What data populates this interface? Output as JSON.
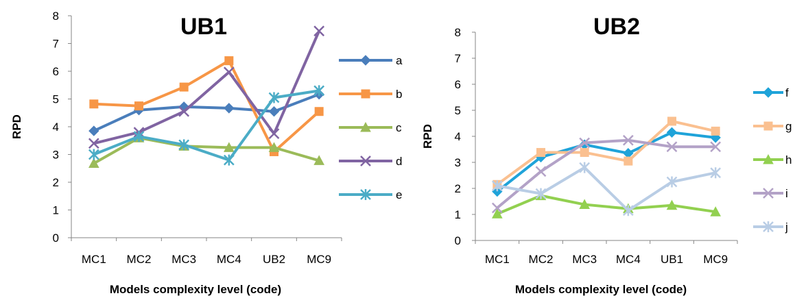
{
  "chart_data": [
    {
      "type": "line",
      "title": "UB1",
      "xlabel": "Models complexity level (code)",
      "ylabel": "RPD",
      "ylim": [
        0,
        8
      ],
      "yticks": [
        0,
        1,
        2,
        3,
        4,
        5,
        6,
        7,
        8
      ],
      "categories": [
        "MC1",
        "MC2",
        "MC3",
        "MC4",
        "UB2",
        "MC9"
      ],
      "legend_position": "right",
      "grid": false,
      "series": [
        {
          "name": "a",
          "color": "#4a7ebb",
          "marker": "diamond",
          "values": [
            3.85,
            4.6,
            4.72,
            4.67,
            4.55,
            5.17
          ]
        },
        {
          "name": "b",
          "color": "#f79646",
          "marker": "square",
          "values": [
            4.82,
            4.75,
            5.43,
            6.38,
            3.1,
            4.55
          ]
        },
        {
          "name": "c",
          "color": "#9bbb59",
          "marker": "triangle",
          "values": [
            2.68,
            3.6,
            3.3,
            3.25,
            3.25,
            2.78
          ]
        },
        {
          "name": "d",
          "color": "#8064a2",
          "marker": "x",
          "values": [
            3.4,
            3.8,
            4.55,
            5.97,
            3.75,
            7.45
          ]
        },
        {
          "name": "e",
          "color": "#4bacc6",
          "marker": "star",
          "values": [
            3.0,
            3.65,
            3.35,
            2.8,
            5.05,
            5.3
          ]
        }
      ]
    },
    {
      "type": "line",
      "title": "UB2",
      "xlabel": "Models complexity level (code)",
      "ylabel": "RPD",
      "ylim": [
        0,
        8
      ],
      "yticks": [
        0,
        1,
        2,
        3,
        4,
        5,
        6,
        7,
        8
      ],
      "categories": [
        "MC1",
        "MC2",
        "MC3",
        "MC4",
        "UB1",
        "MC9"
      ],
      "legend_position": "right",
      "grid": false,
      "series": [
        {
          "name": "f",
          "color": "#1fa3d9",
          "marker": "diamond",
          "values": [
            1.88,
            3.2,
            3.68,
            3.35,
            4.15,
            3.95
          ]
        },
        {
          "name": "g",
          "color": "#fac090",
          "marker": "square",
          "values": [
            2.15,
            3.38,
            3.38,
            3.05,
            4.58,
            4.2
          ]
        },
        {
          "name": "h",
          "color": "#92d050",
          "marker": "triangle",
          "values": [
            1.02,
            1.72,
            1.38,
            1.22,
            1.35,
            1.1
          ]
        },
        {
          "name": "i",
          "color": "#b3a2c7",
          "marker": "x",
          "values": [
            1.25,
            2.65,
            3.75,
            3.85,
            3.6,
            3.6
          ]
        },
        {
          "name": "j",
          "color": "#b9cde5",
          "marker": "star",
          "values": [
            2.1,
            1.8,
            2.8,
            1.15,
            2.25,
            2.6
          ]
        }
      ]
    }
  ]
}
